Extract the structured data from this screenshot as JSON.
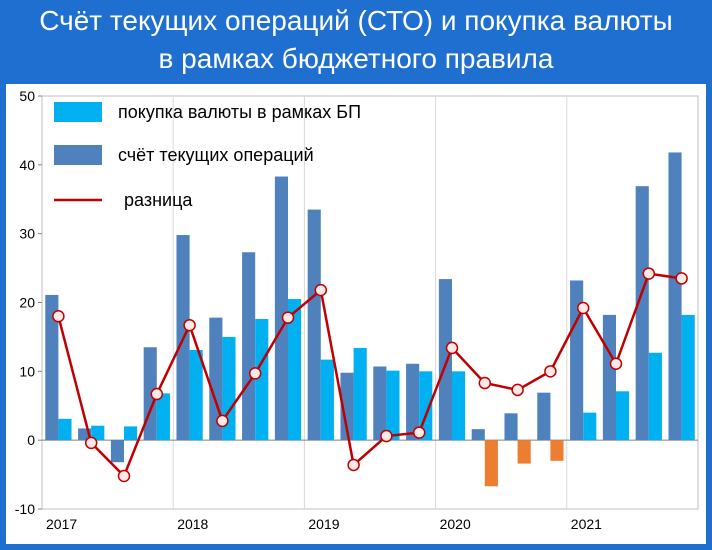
{
  "title_line1": "Счёт текущих операций (СТО) и покупка валюты",
  "title_line2": "в рамках бюджетного правила",
  "colors": {
    "background": "#1f6fd0",
    "purchase": "#00b0f0",
    "current_account": "#4f81bd",
    "negative_purchase": "#ed7d31",
    "difference_line": "#c00000",
    "marker_fill": "#fde9e7"
  },
  "chart_data": {
    "type": "bar",
    "ylim": [
      -10,
      50
    ],
    "yticks": [
      -10,
      0,
      10,
      20,
      30,
      40,
      50
    ],
    "grid": "vertical lines at year boundaries",
    "legend_position": "top-left",
    "x_labels": [
      "2017",
      "2018",
      "2019",
      "2020",
      "2021"
    ],
    "quarters": [
      "2017 Q1",
      "2017 Q2",
      "2017 Q3",
      "2017 Q4",
      "2018 Q1",
      "2018 Q2",
      "2018 Q3",
      "2018 Q4",
      "2019 Q1",
      "2019 Q2",
      "2019 Q3",
      "2019 Q4",
      "2020 Q1",
      "2020 Q2",
      "2020 Q3",
      "2020 Q4",
      "2021 Q1",
      "2021 Q2",
      "2021 Q3",
      "2021 Q4"
    ],
    "series": [
      {
        "name": "покупка валюты в рамках БП",
        "type": "bar",
        "values": [
          3.1,
          2.1,
          2.0,
          6.8,
          13.1,
          15.0,
          17.6,
          20.5,
          11.7,
          13.4,
          10.1,
          10.0,
          10.0,
          -6.7,
          -3.4,
          -3.0,
          4.0,
          7.1,
          12.7,
          18.2
        ]
      },
      {
        "name": "счёт текущих операций",
        "type": "bar",
        "values": [
          21.1,
          1.7,
          -3.2,
          13.5,
          29.8,
          17.8,
          27.3,
          38.3,
          33.5,
          9.8,
          10.7,
          11.1,
          23.4,
          1.6,
          3.9,
          6.9,
          23.2,
          18.2,
          36.9,
          41.8
        ]
      },
      {
        "name": "разница",
        "type": "line",
        "values": [
          18.0,
          -0.4,
          -5.2,
          6.7,
          16.7,
          2.8,
          9.7,
          17.8,
          21.8,
          -3.6,
          0.6,
          1.1,
          13.4,
          8.3,
          7.3,
          10.0,
          19.2,
          11.1,
          24.2,
          23.5
        ]
      }
    ]
  }
}
